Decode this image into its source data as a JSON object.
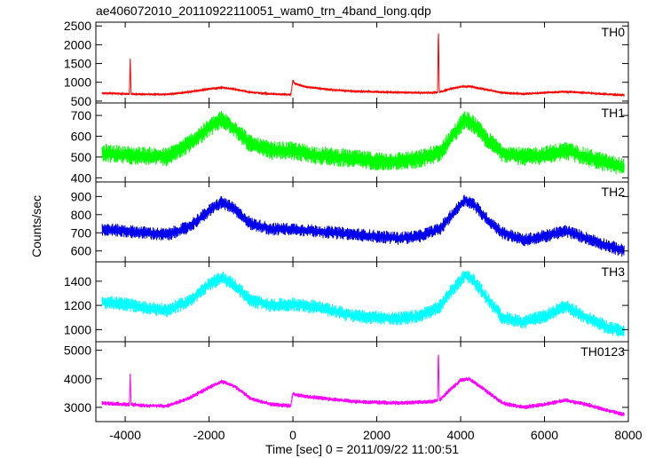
{
  "chart_data": {
    "type": "line",
    "title": "ae406072010_20110922110051_wam0_trn_4band_long.qdp",
    "xlabel": "Time [sec] 0 = 2011/09/22 11:00:51",
    "ylabel": "Counts/sec",
    "xlim": [
      -4700,
      8000
    ],
    "xticks": [
      -4000,
      -2000,
      0,
      2000,
      4000,
      6000,
      8000
    ],
    "panels": [
      {
        "name": "TH0",
        "color": "#ff0000",
        "ylim": [
          450,
          2600
        ],
        "yticks": [
          500,
          1000,
          1500,
          2000,
          2500
        ],
        "x": [
          -4550,
          -4200,
          -4000,
          -3900,
          -3880,
          -3860,
          -3500,
          -3000,
          -2500,
          -2000,
          -1700,
          -1400,
          -1000,
          -500,
          -50,
          0,
          50,
          300,
          800,
          1500,
          2500,
          3300,
          3450,
          3470,
          3490,
          3700,
          4000,
          4200,
          4500,
          5000,
          5500,
          6000,
          6500,
          7000,
          7500,
          7900
        ],
        "values": [
          710,
          700,
          690,
          690,
          1660,
          690,
          680,
          680,
          740,
          820,
          860,
          820,
          730,
          690,
          670,
          1050,
          960,
          880,
          810,
          760,
          730,
          720,
          730,
          2550,
          740,
          810,
          880,
          890,
          830,
          720,
          690,
          720,
          750,
          720,
          680,
          660
        ],
        "noise": 25
      },
      {
        "name": "TH1",
        "color": "#00ff00",
        "ylim": [
          380,
          760
        ],
        "yticks": [
          400,
          500,
          600,
          700
        ],
        "x": [
          -4550,
          -4000,
          -3500,
          -3000,
          -2500,
          -2000,
          -1700,
          -1400,
          -1000,
          -500,
          0,
          500,
          1000,
          1500,
          2000,
          2500,
          3000,
          3500,
          3800,
          4100,
          4300,
          4600,
          5000,
          5500,
          6000,
          6500,
          7000,
          7500,
          7900
        ],
        "values": [
          520,
          510,
          505,
          500,
          560,
          640,
          680,
          640,
          560,
          530,
          530,
          510,
          500,
          490,
          480,
          480,
          490,
          520,
          600,
          680,
          660,
          590,
          520,
          500,
          510,
          530,
          500,
          470,
          450
        ],
        "noise": 35
      },
      {
        "name": "TH2",
        "color": "#0000ee",
        "ylim": [
          540,
          980
        ],
        "yticks": [
          600,
          700,
          800,
          900
        ],
        "x": [
          -4550,
          -4000,
          -3500,
          -3000,
          -2500,
          -2000,
          -1700,
          -1400,
          -1000,
          -500,
          0,
          500,
          1000,
          1500,
          2000,
          2500,
          3000,
          3500,
          3800,
          4100,
          4300,
          4600,
          5000,
          5500,
          6000,
          6500,
          7000,
          7500,
          7900
        ],
        "values": [
          720,
          710,
          700,
          690,
          730,
          820,
          870,
          830,
          750,
          720,
          720,
          710,
          700,
          690,
          680,
          670,
          680,
          720,
          800,
          880,
          860,
          780,
          700,
          660,
          680,
          710,
          670,
          630,
          600
        ],
        "noise": 28
      },
      {
        "name": "TH3",
        "color": "#00ffff",
        "ylim": [
          900,
          1560
        ],
        "yticks": [
          1000,
          1200,
          1400
        ],
        "x": [
          -4550,
          -4000,
          -3500,
          -3000,
          -2500,
          -2000,
          -1700,
          -1400,
          -1000,
          -500,
          0,
          500,
          1000,
          1500,
          2000,
          2500,
          3000,
          3500,
          3800,
          4100,
          4300,
          4600,
          5000,
          5500,
          6000,
          6500,
          7000,
          7500,
          7900
        ],
        "values": [
          1230,
          1210,
          1180,
          1160,
          1230,
          1370,
          1430,
          1370,
          1240,
          1200,
          1210,
          1190,
          1150,
          1110,
          1100,
          1090,
          1110,
          1190,
          1330,
          1450,
          1410,
          1270,
          1100,
          1060,
          1110,
          1190,
          1100,
          1020,
          980
        ],
        "noise": 45
      },
      {
        "name": "TH0123",
        "color": "#ff00ff",
        "ylim": [
          2500,
          5300
        ],
        "yticks": [
          3000,
          4000,
          5000
        ],
        "x": [
          -4550,
          -4200,
          -4000,
          -3900,
          -3880,
          -3860,
          -3500,
          -3000,
          -2500,
          -2000,
          -1700,
          -1400,
          -1000,
          -500,
          -50,
          0,
          50,
          300,
          800,
          1500,
          2500,
          3300,
          3450,
          3470,
          3490,
          3700,
          4000,
          4200,
          4500,
          5000,
          5500,
          6000,
          6500,
          7000,
          7500,
          7900
        ],
        "values": [
          3150,
          3120,
          3100,
          3100,
          4200,
          3100,
          3060,
          3050,
          3300,
          3700,
          3900,
          3750,
          3300,
          3100,
          3050,
          3500,
          3450,
          3380,
          3300,
          3200,
          3150,
          3200,
          3250,
          5150,
          3250,
          3550,
          3950,
          4000,
          3700,
          3150,
          3000,
          3100,
          3250,
          3100,
          2900,
          2750
        ],
        "noise": 60
      }
    ]
  }
}
